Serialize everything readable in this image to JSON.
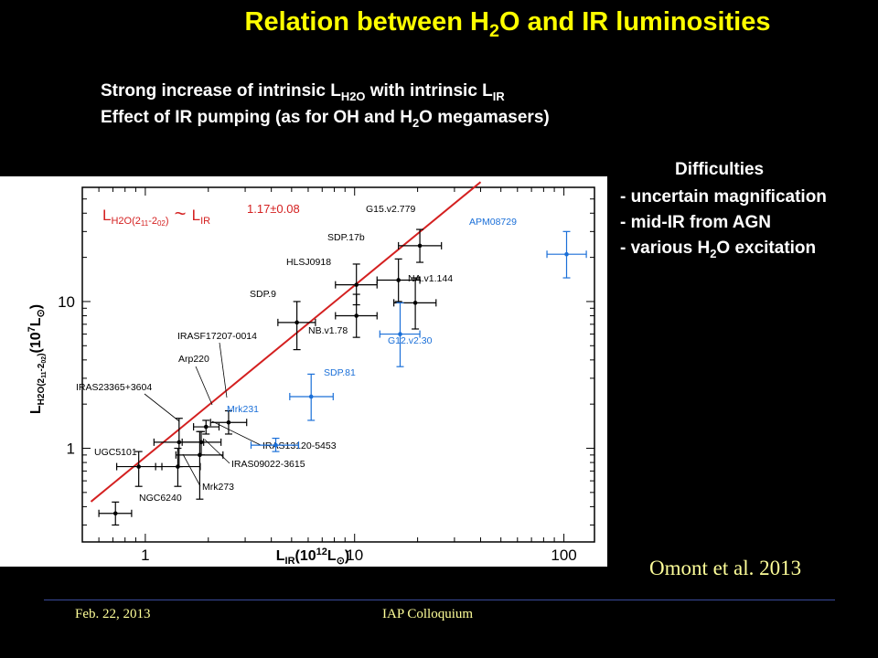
{
  "slide": {
    "title_pre": "Relation between H",
    "title_sub": "2",
    "title_post": "O and IR luminosities",
    "line1_pre": "Strong increase of intrinsic L",
    "line1_sub": "H2O",
    "line1_mid": " with intrinsic L",
    "line1_sub2": "IR",
    "line2_pre": "Effect of IR pumping (as for OH and H",
    "line2_sub": "2",
    "line2_post": "O megamasers)",
    "difficulties_heading": "Difficulties",
    "difficulties": {
      "item1": "- uncertain magnification",
      "item2": "- mid-IR from AGN",
      "item3_pre": "- various H",
      "item3_sub": "2",
      "item3_post": "O excitation"
    },
    "citation": "Omont et al. 2013",
    "footer_date": "Feb. 22, 2013",
    "footer_venue": "IAP Colloquium"
  },
  "chart_data": {
    "type": "scatter",
    "x_scale": "log",
    "y_scale": "log",
    "xlim": [
      0.5,
      140
    ],
    "ylim": [
      0.23,
      60
    ],
    "xlabel_main": "L",
    "xlabel_sub": "IR",
    "xlabel_rest": "(10",
    "xlabel_exp": "12",
    "xlabel_unit": "L",
    "xlabel_sun": "⊙",
    "xlabel_close": ")",
    "ylabel_main": "L",
    "ylabel_sub": "H2O(2",
    "ylabel_subsub": "11",
    "ylabel_sub2": "-2",
    "ylabel_subsub2": "02",
    "ylabel_sub3": ")",
    "ylabel_rest": "(10",
    "ylabel_exp": "7",
    "ylabel_unit": "L",
    "ylabel_sun": "⊙",
    "ylabel_close": ")",
    "xticks": [
      "1",
      "10",
      "100"
    ],
    "yticks": [
      "1",
      "10"
    ],
    "colors": {
      "local": "#000000",
      "high_z": "#1a6fd8",
      "fit": "#d42020"
    },
    "fit_line": {
      "slope": 1.17,
      "intercept_log": -0.06,
      "x_range": [
        0.55,
        40
      ]
    },
    "annotation": {
      "lhs_main": "L",
      "lhs_sub": "H2O(2",
      "lhs_subsub": "11",
      "lhs_sub2": "-2",
      "lhs_subsub2": "02",
      "lhs_sub3": ")",
      "tilde": "~",
      "rhs_main": "L",
      "rhs_sub": "IR",
      "exponent": "1.17±0.08"
    },
    "points": [
      {
        "label": "NGC6240",
        "x": 0.72,
        "y": 0.36,
        "xerr": [
          0.6,
          0.86
        ],
        "yerr": [
          0.3,
          0.43
        ],
        "group": "local"
      },
      {
        "label": "UGC5101",
        "x": 0.93,
        "y": 0.75,
        "xerr": [
          0.73,
          1.2
        ],
        "yerr": [
          0.55,
          0.95
        ],
        "group": "local"
      },
      {
        "label": "Mrk273",
        "x": 1.43,
        "y": 0.75,
        "xerr": [
          1.12,
          1.83
        ],
        "yerr": [
          0.55,
          1.0
        ],
        "group": "local"
      },
      {
        "label": "IRAS23365+3604",
        "x": 1.45,
        "y": 1.1,
        "xerr": [
          1.1,
          1.9
        ],
        "yerr": [
          0.75,
          1.6
        ],
        "group": "local"
      },
      {
        "label": "IRAS09022-3615",
        "x": 1.82,
        "y": 0.9,
        "xerr": [
          1.4,
          2.35
        ],
        "yerr": [
          0.45,
          1.3
        ],
        "group": "local"
      },
      {
        "label": "IRAS13120-5453",
        "x": 1.85,
        "y": 1.1,
        "xerr": [
          1.5,
          2.3
        ],
        "yerr": [
          0.9,
          1.3
        ],
        "group": "local"
      },
      {
        "label": "Arp220",
        "x": 1.95,
        "y": 1.4,
        "xerr": [
          1.7,
          2.25
        ],
        "yerr": [
          1.25,
          1.55
        ],
        "group": "local"
      },
      {
        "label": "IRASF17207-0014",
        "x": 2.5,
        "y": 1.5,
        "xerr": [
          2.05,
          3.05
        ],
        "yerr": [
          1.25,
          1.8
        ],
        "group": "local"
      },
      {
        "label": "SDP.9",
        "x": 5.3,
        "y": 7.2,
        "xerr": [
          4.3,
          6.5
        ],
        "yerr": [
          4.7,
          10
        ],
        "group": "high"
      },
      {
        "label": "NB.v1.78",
        "x": 10.2,
        "y": 8.0,
        "xerr": [
          8.1,
          12.8
        ],
        "yerr": [
          5.7,
          11.2
        ],
        "group": "high"
      },
      {
        "label": "HLSJ0918",
        "x": 10.2,
        "y": 13,
        "xerr": [
          8.1,
          12.8
        ],
        "yerr": [
          9.5,
          18
        ],
        "group": "high"
      },
      {
        "label": "SDP.17b",
        "x": 16.2,
        "y": 14,
        "xerr": [
          12.8,
          20.5
        ],
        "yerr": [
          10,
          19.5
        ],
        "group": "high"
      },
      {
        "label": "G15.v2.779",
        "x": 20.5,
        "y": 24,
        "xerr": [
          16.2,
          26
        ],
        "yerr": [
          18.5,
          31
        ],
        "group": "high"
      },
      {
        "label": "NA.v1.144",
        "x": 19.5,
        "y": 9.8,
        "xerr": [
          15.4,
          24.5
        ],
        "yerr": [
          6.5,
          14.5
        ],
        "group": "high"
      },
      {
        "label": "Mrk231",
        "x": 4.2,
        "y": 1.05,
        "xerr": [
          3.2,
          5.4
        ],
        "yerr": [
          0.95,
          1.17
        ],
        "group": "blue"
      },
      {
        "label": "SDP.81",
        "x": 6.2,
        "y": 2.25,
        "xerr": [
          4.9,
          7.9
        ],
        "yerr": [
          1.55,
          3.2
        ],
        "group": "blue"
      },
      {
        "label": "G12.v2.30",
        "x": 16.5,
        "y": 6.0,
        "xerr": [
          13.2,
          20.5
        ],
        "yerr": [
          3.6,
          9.8
        ],
        "group": "blue"
      },
      {
        "label": "APM08729",
        "x": 103,
        "y": 21,
        "xerr": [
          83,
          128
        ],
        "yerr": [
          14.5,
          30
        ],
        "group": "blue"
      }
    ]
  }
}
